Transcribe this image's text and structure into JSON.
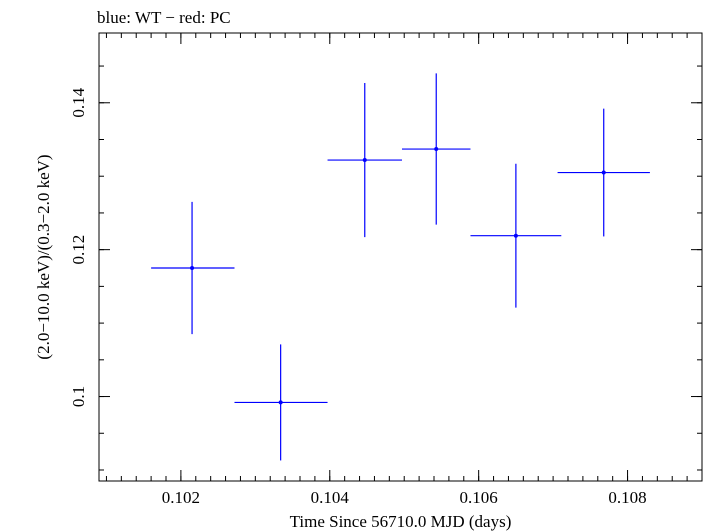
{
  "chart_data": {
    "type": "scatter",
    "title": "blue: WT − red: PC",
    "xlabel": "Time Since 56710.0 MJD (days)",
    "ylabel": "(2.0−10.0 keV)/(0.3−2.0 keV)",
    "xlim": [
      0.1009,
      0.109
    ],
    "ylim": [
      0.0885,
      0.1495
    ],
    "x_ticks": [
      {
        "value": 0.102,
        "label": "0.102"
      },
      {
        "value": 0.104,
        "label": "0.104"
      },
      {
        "value": 0.106,
        "label": "0.106"
      },
      {
        "value": 0.108,
        "label": "0.108"
      }
    ],
    "x_minor_step": 0.0002,
    "y_ticks": [
      {
        "value": 0.1,
        "label": "0.1"
      },
      {
        "value": 0.12,
        "label": "0.12"
      },
      {
        "value": 0.14,
        "label": "0.14"
      }
    ],
    "y_minor_step": 0.005,
    "grid": false,
    "series": [
      {
        "color": "#0000ff",
        "points": [
          {
            "x": 0.10215,
            "xerr_lo": 0.00055,
            "xerr_hi": 0.00057,
            "y": 0.1175,
            "yerr_lo": 0.009,
            "yerr_hi": 0.009
          },
          {
            "x": 0.10334,
            "xerr_lo": 0.00062,
            "xerr_hi": 0.00063,
            "y": 0.0992,
            "yerr_lo": 0.0079,
            "yerr_hi": 0.0079
          },
          {
            "x": 0.10447,
            "xerr_lo": 0.0005,
            "xerr_hi": 0.0005,
            "y": 0.1322,
            "yerr_lo": 0.0105,
            "yerr_hi": 0.0105
          },
          {
            "x": 0.10543,
            "xerr_lo": 0.00046,
            "xerr_hi": 0.00046,
            "y": 0.1337,
            "yerr_lo": 0.0103,
            "yerr_hi": 0.0103
          },
          {
            "x": 0.1065,
            "xerr_lo": 0.00061,
            "xerr_hi": 0.00061,
            "y": 0.1219,
            "yerr_lo": 0.0098,
            "yerr_hi": 0.0098
          },
          {
            "x": 0.10768,
            "xerr_lo": 0.00062,
            "xerr_hi": 0.00062,
            "y": 0.1305,
            "yerr_lo": 0.0087,
            "yerr_hi": 0.0087
          }
        ]
      }
    ]
  }
}
